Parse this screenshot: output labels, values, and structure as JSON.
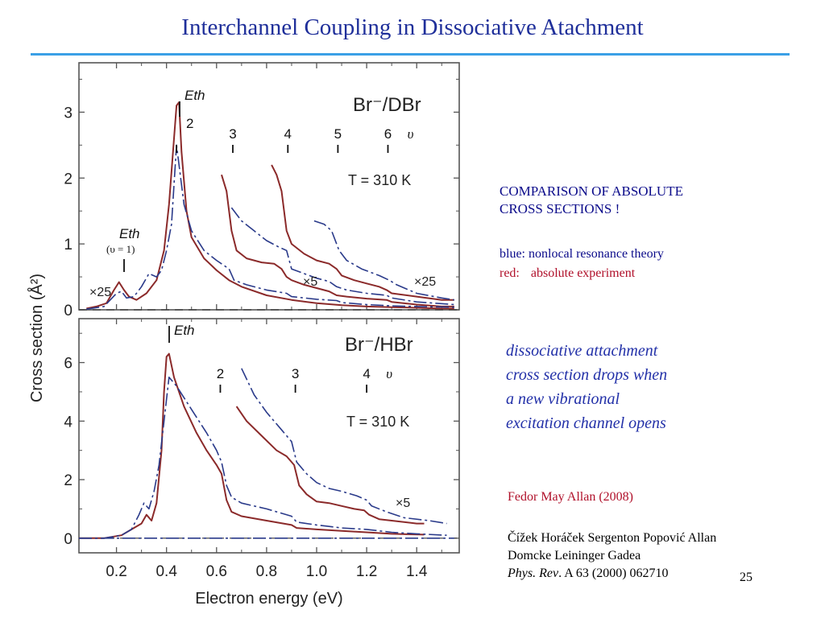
{
  "slide": {
    "title": "Interchannel Coupling in Dissociative Atachment",
    "page_number": "25",
    "accent_color": "#3aa0e6",
    "title_color": "#1f2f9a"
  },
  "notes": {
    "comparison_line1": "COMPARISON OF ABSOLUTE",
    "comparison_line2": "CROSS SECTIONS !",
    "blue_label": "blue: nonlocal resonance theory",
    "red_label_key": "red:",
    "red_label_text": "absolute experiment",
    "italic_line1": "dissociative attachment",
    "italic_line2": "cross section drops when",
    "italic_line3": "a new vibrational",
    "italic_line4": "excitation channel opens",
    "ref_experiment": "Fedor May Allan (2008)",
    "ref_theory_line1": "Čížek Horáček Sergenton Popović Allan",
    "ref_theory_line2": "Domcke Leininger Gadea",
    "ref_journal": "Phys. Rev",
    "ref_volume": ". A 63 (2000) 062710"
  },
  "chart_data": [
    {
      "type": "line",
      "title": "Br⁻/DBr",
      "temperature_label": "T = 310 K",
      "xlabel": "Electron energy (eV)",
      "ylabel": "Cross section (Å²)",
      "xlim": [
        0.05,
        1.57
      ],
      "ylim": [
        0,
        3.75
      ],
      "x_ticks": [
        "0.2",
        "0.4",
        "0.6",
        "0.8",
        "1.0",
        "1.2",
        "1.4"
      ],
      "y_ticks": [
        "0",
        "1",
        "2",
        "3"
      ],
      "threshold_label": "Eth",
      "threshold_sub_label": "(υ = 1)",
      "vibrational_marks": [
        {
          "label": "2",
          "x": 0.44
        },
        {
          "label": "3",
          "x": 0.665
        },
        {
          "label": "4",
          "x": 0.885
        },
        {
          "label": "5",
          "x": 1.085
        },
        {
          "label": "6",
          "x": 1.285
        }
      ],
      "vib_symbol": "υ",
      "scale_labels": [
        "×25",
        "×5",
        "×25"
      ],
      "series": [
        {
          "color": "#8b2a2a",
          "points": [
            [
              0.08,
              0.02
            ],
            [
              0.12,
              0.05
            ],
            [
              0.16,
              0.1
            ],
            [
              0.19,
              0.3
            ],
            [
              0.21,
              0.42
            ],
            [
              0.23,
              0.3
            ],
            [
              0.25,
              0.2
            ],
            [
              0.28,
              0.15
            ],
            [
              0.32,
              0.25
            ],
            [
              0.36,
              0.45
            ],
            [
              0.39,
              0.9
            ],
            [
              0.41,
              1.6
            ],
            [
              0.43,
              2.6
            ],
            [
              0.44,
              3.1
            ],
            [
              0.45,
              3.15
            ],
            [
              0.46,
              2.4
            ],
            [
              0.48,
              1.5
            ],
            [
              0.5,
              1.1
            ],
            [
              0.55,
              0.78
            ],
            [
              0.6,
              0.6
            ],
            [
              0.65,
              0.45
            ],
            [
              0.7,
              0.35
            ],
            [
              0.8,
              0.22
            ],
            [
              0.9,
              0.15
            ],
            [
              1.0,
              0.1
            ],
            [
              1.1,
              0.07
            ],
            [
              1.2,
              0.05
            ],
            [
              1.3,
              0.04
            ],
            [
              1.4,
              0.03
            ],
            [
              1.5,
              0.02
            ],
            [
              1.55,
              0.02
            ]
          ]
        },
        {
          "color": "#8b2a2a",
          "points": [
            [
              0.62,
              2.05
            ],
            [
              0.64,
              1.8
            ],
            [
              0.66,
              1.2
            ],
            [
              0.68,
              0.9
            ],
            [
              0.72,
              0.78
            ],
            [
              0.78,
              0.72
            ],
            [
              0.83,
              0.7
            ],
            [
              0.86,
              0.62
            ],
            [
              0.88,
              0.5
            ],
            [
              0.9,
              0.45
            ],
            [
              0.95,
              0.38
            ],
            [
              1.0,
              0.33
            ],
            [
              1.05,
              0.28
            ],
            [
              1.08,
              0.22
            ],
            [
              1.12,
              0.2
            ],
            [
              1.2,
              0.17
            ],
            [
              1.28,
              0.15
            ],
            [
              1.3,
              0.12
            ],
            [
              1.4,
              0.08
            ],
            [
              1.5,
              0.05
            ],
            [
              1.55,
              0.05
            ]
          ]
        },
        {
          "color": "#8b2a2a",
          "points": [
            [
              0.82,
              2.2
            ],
            [
              0.84,
              2.05
            ],
            [
              0.86,
              1.8
            ],
            [
              0.88,
              1.2
            ],
            [
              0.9,
              1.0
            ],
            [
              0.95,
              0.85
            ],
            [
              1.0,
              0.75
            ],
            [
              1.05,
              0.7
            ],
            [
              1.08,
              0.62
            ],
            [
              1.1,
              0.52
            ],
            [
              1.15,
              0.45
            ],
            [
              1.2,
              0.4
            ],
            [
              1.25,
              0.35
            ],
            [
              1.28,
              0.3
            ],
            [
              1.3,
              0.25
            ],
            [
              1.4,
              0.2
            ],
            [
              1.5,
              0.15
            ],
            [
              1.55,
              0.15
            ]
          ]
        },
        {
          "color": "#2a3a8a",
          "dashed": true,
          "points": [
            [
              0.08,
              0.01
            ],
            [
              0.15,
              0.05
            ],
            [
              0.2,
              0.25
            ],
            [
              0.22,
              0.28
            ],
            [
              0.24,
              0.18
            ],
            [
              0.27,
              0.2
            ],
            [
              0.3,
              0.35
            ],
            [
              0.33,
              0.55
            ],
            [
              0.36,
              0.5
            ],
            [
              0.38,
              0.6
            ],
            [
              0.4,
              0.9
            ],
            [
              0.42,
              1.3
            ],
            [
              0.44,
              2.5
            ],
            [
              0.45,
              2.2
            ],
            [
              0.47,
              1.6
            ],
            [
              0.5,
              1.2
            ],
            [
              0.55,
              0.9
            ],
            [
              0.6,
              0.75
            ],
            [
              0.65,
              0.62
            ],
            [
              0.67,
              0.45
            ],
            [
              0.72,
              0.38
            ],
            [
              0.8,
              0.3
            ],
            [
              0.88,
              0.25
            ],
            [
              0.9,
              0.2
            ],
            [
              1.0,
              0.16
            ],
            [
              1.08,
              0.14
            ],
            [
              1.1,
              0.11
            ],
            [
              1.2,
              0.08
            ],
            [
              1.3,
              0.06
            ],
            [
              1.4,
              0.05
            ],
            [
              1.55,
              0.04
            ]
          ]
        },
        {
          "color": "#2a3a8a",
          "dashed": true,
          "points": [
            [
              0.66,
              1.55
            ],
            [
              0.7,
              1.35
            ],
            [
              0.75,
              1.2
            ],
            [
              0.8,
              1.05
            ],
            [
              0.85,
              0.95
            ],
            [
              0.88,
              0.9
            ],
            [
              0.9,
              0.62
            ],
            [
              0.95,
              0.55
            ],
            [
              1.0,
              0.48
            ],
            [
              1.05,
              0.43
            ],
            [
              1.08,
              0.35
            ],
            [
              1.12,
              0.3
            ],
            [
              1.2,
              0.25
            ],
            [
              1.28,
              0.22
            ],
            [
              1.3,
              0.18
            ],
            [
              1.4,
              0.12
            ],
            [
              1.55,
              0.08
            ]
          ]
        },
        {
          "color": "#2a3a8a",
          "dashed": true,
          "points": [
            [
              0.99,
              1.35
            ],
            [
              1.03,
              1.3
            ],
            [
              1.06,
              1.2
            ],
            [
              1.09,
              0.9
            ],
            [
              1.12,
              0.75
            ],
            [
              1.18,
              0.62
            ],
            [
              1.25,
              0.52
            ],
            [
              1.29,
              0.45
            ],
            [
              1.32,
              0.38
            ],
            [
              1.4,
              0.25
            ],
            [
              1.5,
              0.18
            ],
            [
              1.55,
              0.15
            ]
          ]
        }
      ]
    },
    {
      "type": "line",
      "title": "Br⁻/HBr",
      "temperature_label": "T = 310 K",
      "xlabel": "Electron energy (eV)",
      "ylabel": "Cross section (Å²)",
      "xlim": [
        0.05,
        1.57
      ],
      "ylim": [
        -0.5,
        7.5
      ],
      "x_ticks": [
        "0.2",
        "0.4",
        "0.6",
        "0.8",
        "1.0",
        "1.2",
        "1.4"
      ],
      "y_ticks": [
        "0",
        "2",
        "4",
        "6"
      ],
      "threshold_label": "Eth",
      "vibrational_marks": [
        {
          "label": "2",
          "x": 0.615
        },
        {
          "label": "3",
          "x": 0.915
        },
        {
          "label": "4",
          "x": 1.2
        }
      ],
      "vib_symbol": "υ",
      "scale_labels": [
        "×5"
      ],
      "series": [
        {
          "color": "#8b2a2a",
          "points": [
            [
              0.05,
              0.0
            ],
            [
              0.15,
              0.0
            ],
            [
              0.22,
              0.1
            ],
            [
              0.26,
              0.3
            ],
            [
              0.3,
              0.5
            ],
            [
              0.32,
              0.8
            ],
            [
              0.34,
              0.6
            ],
            [
              0.36,
              1.2
            ],
            [
              0.38,
              3.0
            ],
            [
              0.39,
              5.0
            ],
            [
              0.4,
              6.2
            ],
            [
              0.41,
              6.3
            ],
            [
              0.43,
              5.5
            ],
            [
              0.47,
              4.5
            ],
            [
              0.52,
              3.6
            ],
            [
              0.56,
              3.0
            ],
            [
              0.6,
              2.5
            ],
            [
              0.62,
              2.2
            ],
            [
              0.64,
              1.3
            ],
            [
              0.66,
              0.9
            ],
            [
              0.7,
              0.75
            ],
            [
              0.8,
              0.6
            ],
            [
              0.9,
              0.45
            ],
            [
              0.92,
              0.35
            ],
            [
              1.0,
              0.3
            ],
            [
              1.1,
              0.25
            ],
            [
              1.2,
              0.2
            ],
            [
              1.3,
              0.15
            ],
            [
              1.43,
              0.12
            ]
          ]
        },
        {
          "color": "#8b2a2a",
          "points": [
            [
              0.68,
              4.5
            ],
            [
              0.72,
              4.0
            ],
            [
              0.78,
              3.5
            ],
            [
              0.84,
              3.0
            ],
            [
              0.88,
              2.8
            ],
            [
              0.91,
              2.5
            ],
            [
              0.93,
              1.8
            ],
            [
              0.96,
              1.5
            ],
            [
              1.0,
              1.25
            ],
            [
              1.05,
              1.2
            ],
            [
              1.1,
              1.1
            ],
            [
              1.15,
              1.0
            ],
            [
              1.19,
              0.95
            ],
            [
              1.21,
              0.8
            ],
            [
              1.25,
              0.65
            ],
            [
              1.3,
              0.6
            ],
            [
              1.4,
              0.5
            ],
            [
              1.43,
              0.5
            ]
          ]
        },
        {
          "color": "#2a3a8a",
          "dashed": true,
          "points": [
            [
              0.05,
              0.0
            ],
            [
              0.15,
              0.0
            ],
            [
              0.22,
              0.1
            ],
            [
              0.26,
              0.3
            ],
            [
              0.29,
              0.8
            ],
            [
              0.31,
              1.2
            ],
            [
              0.33,
              1.0
            ],
            [
              0.35,
              1.6
            ],
            [
              0.37,
              2.5
            ],
            [
              0.39,
              4.0
            ],
            [
              0.41,
              5.5
            ],
            [
              0.44,
              5.2
            ],
            [
              0.5,
              4.4
            ],
            [
              0.56,
              3.6
            ],
            [
              0.6,
              3.0
            ],
            [
              0.62,
              2.6
            ],
            [
              0.64,
              1.8
            ],
            [
              0.66,
              1.4
            ],
            [
              0.7,
              1.2
            ],
            [
              0.8,
              1.0
            ],
            [
              0.9,
              0.75
            ],
            [
              0.92,
              0.55
            ],
            [
              1.0,
              0.45
            ],
            [
              1.1,
              0.35
            ],
            [
              1.2,
              0.3
            ],
            [
              1.3,
              0.2
            ],
            [
              1.4,
              0.15
            ],
            [
              1.52,
              0.1
            ]
          ]
        },
        {
          "color": "#2a3a8a",
          "dashed": true,
          "points": [
            [
              0.7,
              5.8
            ],
            [
              0.75,
              4.9
            ],
            [
              0.8,
              4.3
            ],
            [
              0.86,
              3.7
            ],
            [
              0.9,
              3.3
            ],
            [
              0.92,
              2.6
            ],
            [
              0.96,
              2.2
            ],
            [
              1.0,
              1.9
            ],
            [
              1.05,
              1.7
            ],
            [
              1.1,
              1.6
            ],
            [
              1.16,
              1.45
            ],
            [
              1.2,
              1.3
            ],
            [
              1.22,
              1.1
            ],
            [
              1.28,
              0.9
            ],
            [
              1.35,
              0.7
            ],
            [
              1.45,
              0.6
            ],
            [
              1.52,
              0.5
            ]
          ]
        },
        {
          "color": "#2a3a8a",
          "dashed": true,
          "points": [
            [
              0.05,
              0.0
            ],
            [
              0.3,
              0.0
            ],
            [
              0.5,
              0.0
            ],
            [
              1.0,
              0.0
            ],
            [
              1.55,
              0.0
            ]
          ]
        }
      ]
    }
  ]
}
